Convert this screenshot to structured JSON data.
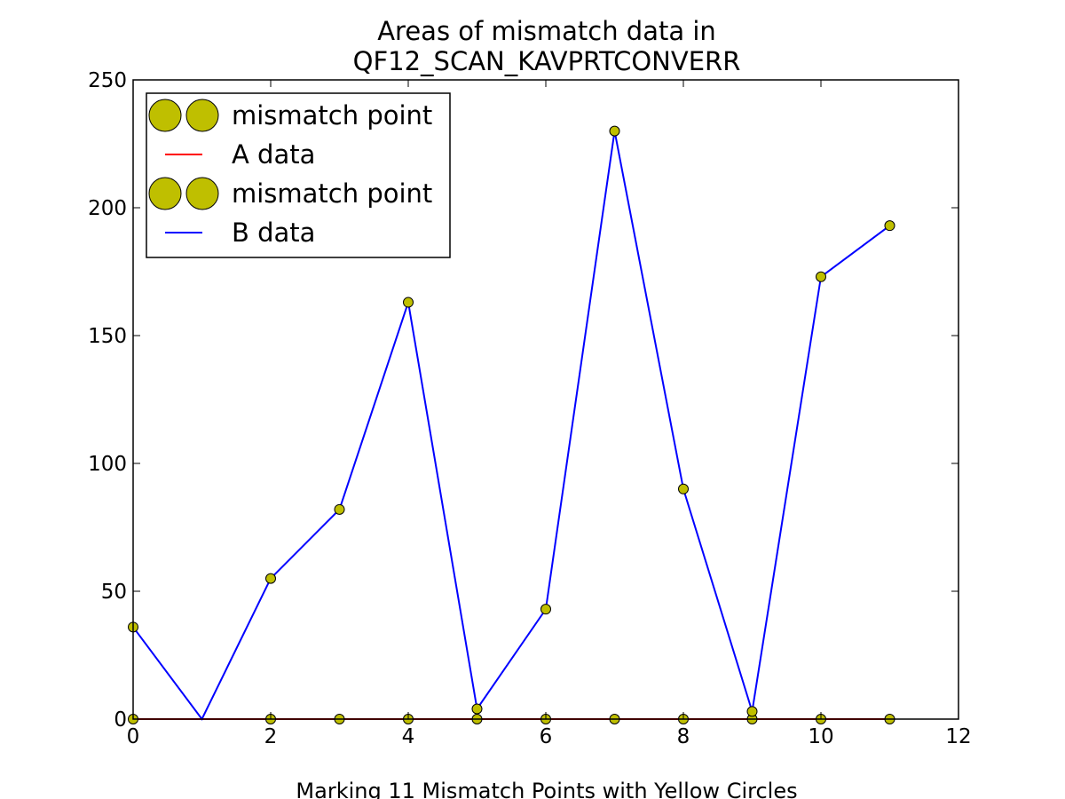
{
  "chart_data": {
    "type": "line",
    "title_lines": [
      "Areas of mismatch data in",
      "QF12_SCAN_KAVPRTCONVERR"
    ],
    "xlabel": "Marking 11 Mismatch Points with Yellow Circles",
    "ylabel": "",
    "xlim": [
      0,
      12
    ],
    "ylim": [
      0,
      250
    ],
    "xticks": [
      0,
      2,
      4,
      6,
      8,
      10,
      12
    ],
    "yticks": [
      0,
      50,
      100,
      150,
      200,
      250
    ],
    "grid": false,
    "legend_position": "top-left",
    "legend": [
      {
        "label": "mismatch point",
        "kind": "marker",
        "color": "#bfbf00"
      },
      {
        "label": "A data",
        "kind": "line",
        "color": "#ff0000"
      },
      {
        "label": "mismatch point",
        "kind": "marker",
        "color": "#bfbf00"
      },
      {
        "label": "B data",
        "kind": "line",
        "color": "#0000ff"
      }
    ],
    "series": [
      {
        "name": "A data",
        "kind": "line",
        "color": "#ff0000",
        "x": [
          0,
          1,
          2,
          3,
          4,
          5,
          6,
          7,
          8,
          9,
          10,
          11
        ],
        "values": [
          0,
          0,
          0,
          0,
          0,
          0,
          0,
          0,
          0,
          0,
          0,
          0
        ]
      },
      {
        "name": "mismatch point",
        "kind": "markers",
        "color": "#bfbf00",
        "x": [
          0,
          2,
          3,
          4,
          5,
          6,
          7,
          8,
          9,
          10,
          11
        ],
        "values": [
          0,
          0,
          0,
          0,
          0,
          0,
          0,
          0,
          0,
          0,
          0
        ]
      },
      {
        "name": "B data",
        "kind": "line",
        "color": "#0000ff",
        "x": [
          0,
          1,
          2,
          3,
          4,
          5,
          6,
          7,
          8,
          9,
          10,
          11
        ],
        "values": [
          36,
          0,
          55,
          82,
          163,
          4,
          43,
          230,
          90,
          3,
          173,
          193
        ]
      },
      {
        "name": "mismatch point",
        "kind": "markers",
        "color": "#bfbf00",
        "x": [
          0,
          2,
          3,
          4,
          5,
          6,
          7,
          8,
          9,
          10,
          11
        ],
        "values": [
          36,
          55,
          82,
          163,
          4,
          43,
          230,
          90,
          3,
          173,
          193
        ]
      }
    ]
  }
}
